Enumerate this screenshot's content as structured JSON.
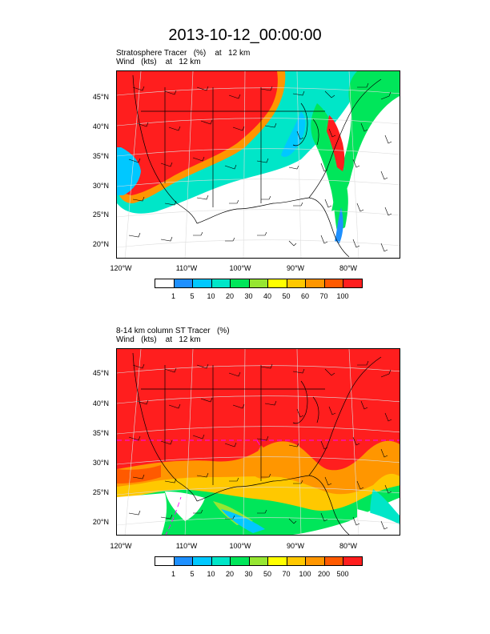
{
  "title": "2013-10-12_00:00:00",
  "panels": [
    {
      "line1": "Stratosphere Tracer   (%)    at   12 km",
      "line2": "Wind   (kts)    at   12 km",
      "lat_labels": [
        "45°N",
        "40°N",
        "35°N",
        "30°N",
        "25°N",
        "20°N"
      ],
      "lon_labels": [
        "120°W",
        "110°W",
        "100°W",
        "90°W",
        "80°W"
      ],
      "colorbar": {
        "colors": [
          "#ffffff",
          "#1e90ff",
          "#00c8ff",
          "#00e6c8",
          "#00e65a",
          "#96e632",
          "#ffff00",
          "#ffc800",
          "#ff9600",
          "#ff5a00",
          "#ff1e1e"
        ],
        "labels": [
          "1",
          "5",
          "10",
          "20",
          "30",
          "40",
          "50",
          "60",
          "70",
          "100"
        ]
      }
    },
    {
      "line1": "8-14 km column ST Tracer   (%)",
      "line2": "Wind   (kts)    at   12 km",
      "lat_labels": [
        "45°N",
        "40°N",
        "35°N",
        "30°N",
        "25°N",
        "20°N"
      ],
      "lon_labels": [
        "120°W",
        "110°W",
        "100°W",
        "90°W",
        "80°W"
      ],
      "colorbar": {
        "colors": [
          "#ffffff",
          "#1e90ff",
          "#00c8ff",
          "#00e6c8",
          "#00e65a",
          "#96e632",
          "#ffff00",
          "#ffc800",
          "#ff9600",
          "#ff5a00",
          "#ff1e1e"
        ],
        "labels": [
          "1",
          "5",
          "10",
          "20",
          "30",
          "50",
          "70",
          "100",
          "200",
          "500"
        ]
      }
    }
  ]
}
